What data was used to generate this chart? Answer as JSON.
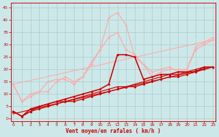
{
  "xlabel": "Vent moyen/en rafales ( km/h )",
  "background_color": "#cce8e8",
  "grid_color": "#aacccc",
  "x_ticks": [
    0,
    1,
    2,
    3,
    4,
    5,
    6,
    7,
    8,
    9,
    10,
    11,
    12,
    13,
    14,
    15,
    16,
    17,
    18,
    19,
    20,
    21,
    22,
    23
  ],
  "y_ticks": [
    0,
    5,
    10,
    15,
    20,
    25,
    30,
    35,
    40,
    45
  ],
  "ylim": [
    -1,
    47
  ],
  "xlim": [
    -0.3,
    23.3
  ],
  "lines": [
    {
      "x": [
        0,
        23
      ],
      "y": [
        2,
        21
      ],
      "color": "#ffaaaa",
      "marker": "None",
      "markersize": 0,
      "linewidth": 0.8,
      "zorder": 2
    },
    {
      "x": [
        0,
        23
      ],
      "y": [
        14,
        32
      ],
      "color": "#ffaaaa",
      "marker": "None",
      "markersize": 0,
      "linewidth": 0.8,
      "zorder": 2
    },
    {
      "x": [
        0,
        1,
        2,
        3,
        4,
        5,
        6,
        7,
        8,
        9,
        10,
        11,
        12,
        13,
        14,
        15,
        16,
        17,
        18,
        19,
        20,
        21,
        22,
        23
      ],
      "y": [
        14,
        7,
        10,
        11,
        15,
        16,
        16,
        14,
        17,
        22,
        28,
        41,
        43,
        38,
        25,
        22,
        17,
        19,
        20,
        20,
        20,
        28,
        30,
        32
      ],
      "color": "#ffaaaa",
      "marker": "D",
      "markersize": 2,
      "linewidth": 0.9,
      "zorder": 3
    },
    {
      "x": [
        0,
        1,
        2,
        3,
        4,
        5,
        6,
        7,
        8,
        9,
        10,
        11,
        12,
        13,
        14,
        15,
        16,
        17,
        18,
        19,
        20,
        21,
        22,
        23
      ],
      "y": [
        14,
        7,
        9,
        11,
        11,
        15,
        17,
        15,
        17,
        23,
        28,
        33,
        35,
        28,
        26,
        22,
        19,
        20,
        21,
        19,
        20,
        29,
        31,
        33
      ],
      "color": "#ffaaaa",
      "marker": "D",
      "markersize": 2,
      "linewidth": 0.9,
      "zorder": 3
    },
    {
      "x": [
        0,
        1,
        2,
        3,
        4,
        5,
        6,
        7,
        8,
        9,
        10,
        11,
        12,
        13,
        14,
        15,
        16,
        17,
        18,
        19,
        20,
        21,
        22,
        23
      ],
      "y": [
        3,
        1,
        3,
        4,
        5,
        6,
        7,
        7,
        8,
        9,
        10,
        11,
        12,
        13,
        13,
        14,
        15,
        16,
        17,
        17,
        18,
        19,
        20,
        21
      ],
      "color": "#cc0000",
      "marker": "D",
      "markersize": 2,
      "linewidth": 0.9,
      "zorder": 5
    },
    {
      "x": [
        0,
        1,
        2,
        3,
        4,
        5,
        6,
        7,
        8,
        9,
        10,
        11,
        12,
        13,
        14,
        15,
        16,
        17,
        18,
        19,
        20,
        21,
        22,
        23
      ],
      "y": [
        3,
        1,
        3,
        5,
        6,
        7,
        7,
        8,
        9,
        10,
        11,
        12,
        13,
        13,
        14,
        15,
        16,
        17,
        18,
        18,
        19,
        20,
        21,
        21
      ],
      "color": "#cc0000",
      "marker": "^",
      "markersize": 2.5,
      "linewidth": 0.9,
      "zorder": 5
    },
    {
      "x": [
        0,
        1,
        2,
        3,
        4,
        5,
        6,
        7,
        8,
        9,
        10,
        11,
        12,
        13,
        14,
        15,
        16,
        17,
        18,
        19,
        20,
        21,
        22,
        23
      ],
      "y": [
        3,
        1,
        4,
        5,
        6,
        7,
        8,
        9,
        10,
        11,
        12,
        14,
        26,
        26,
        25,
        16,
        17,
        18,
        18,
        19,
        19,
        19,
        21,
        21
      ],
      "color": "#cc0000",
      "marker": "D",
      "markersize": 2,
      "linewidth": 1.2,
      "zorder": 6
    },
    {
      "x": [
        0,
        23
      ],
      "y": [
        2,
        21
      ],
      "color": "#cc0000",
      "marker": "None",
      "markersize": 0,
      "linewidth": 0.8,
      "zorder": 4
    }
  ]
}
